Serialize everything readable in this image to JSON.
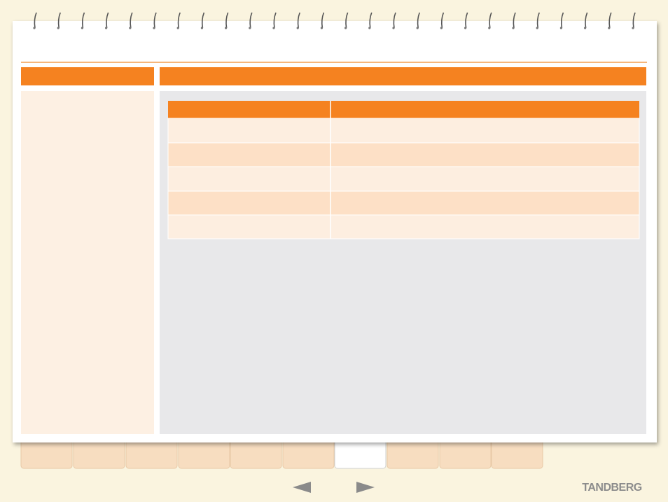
{
  "brand": "TANDBERG"
}
